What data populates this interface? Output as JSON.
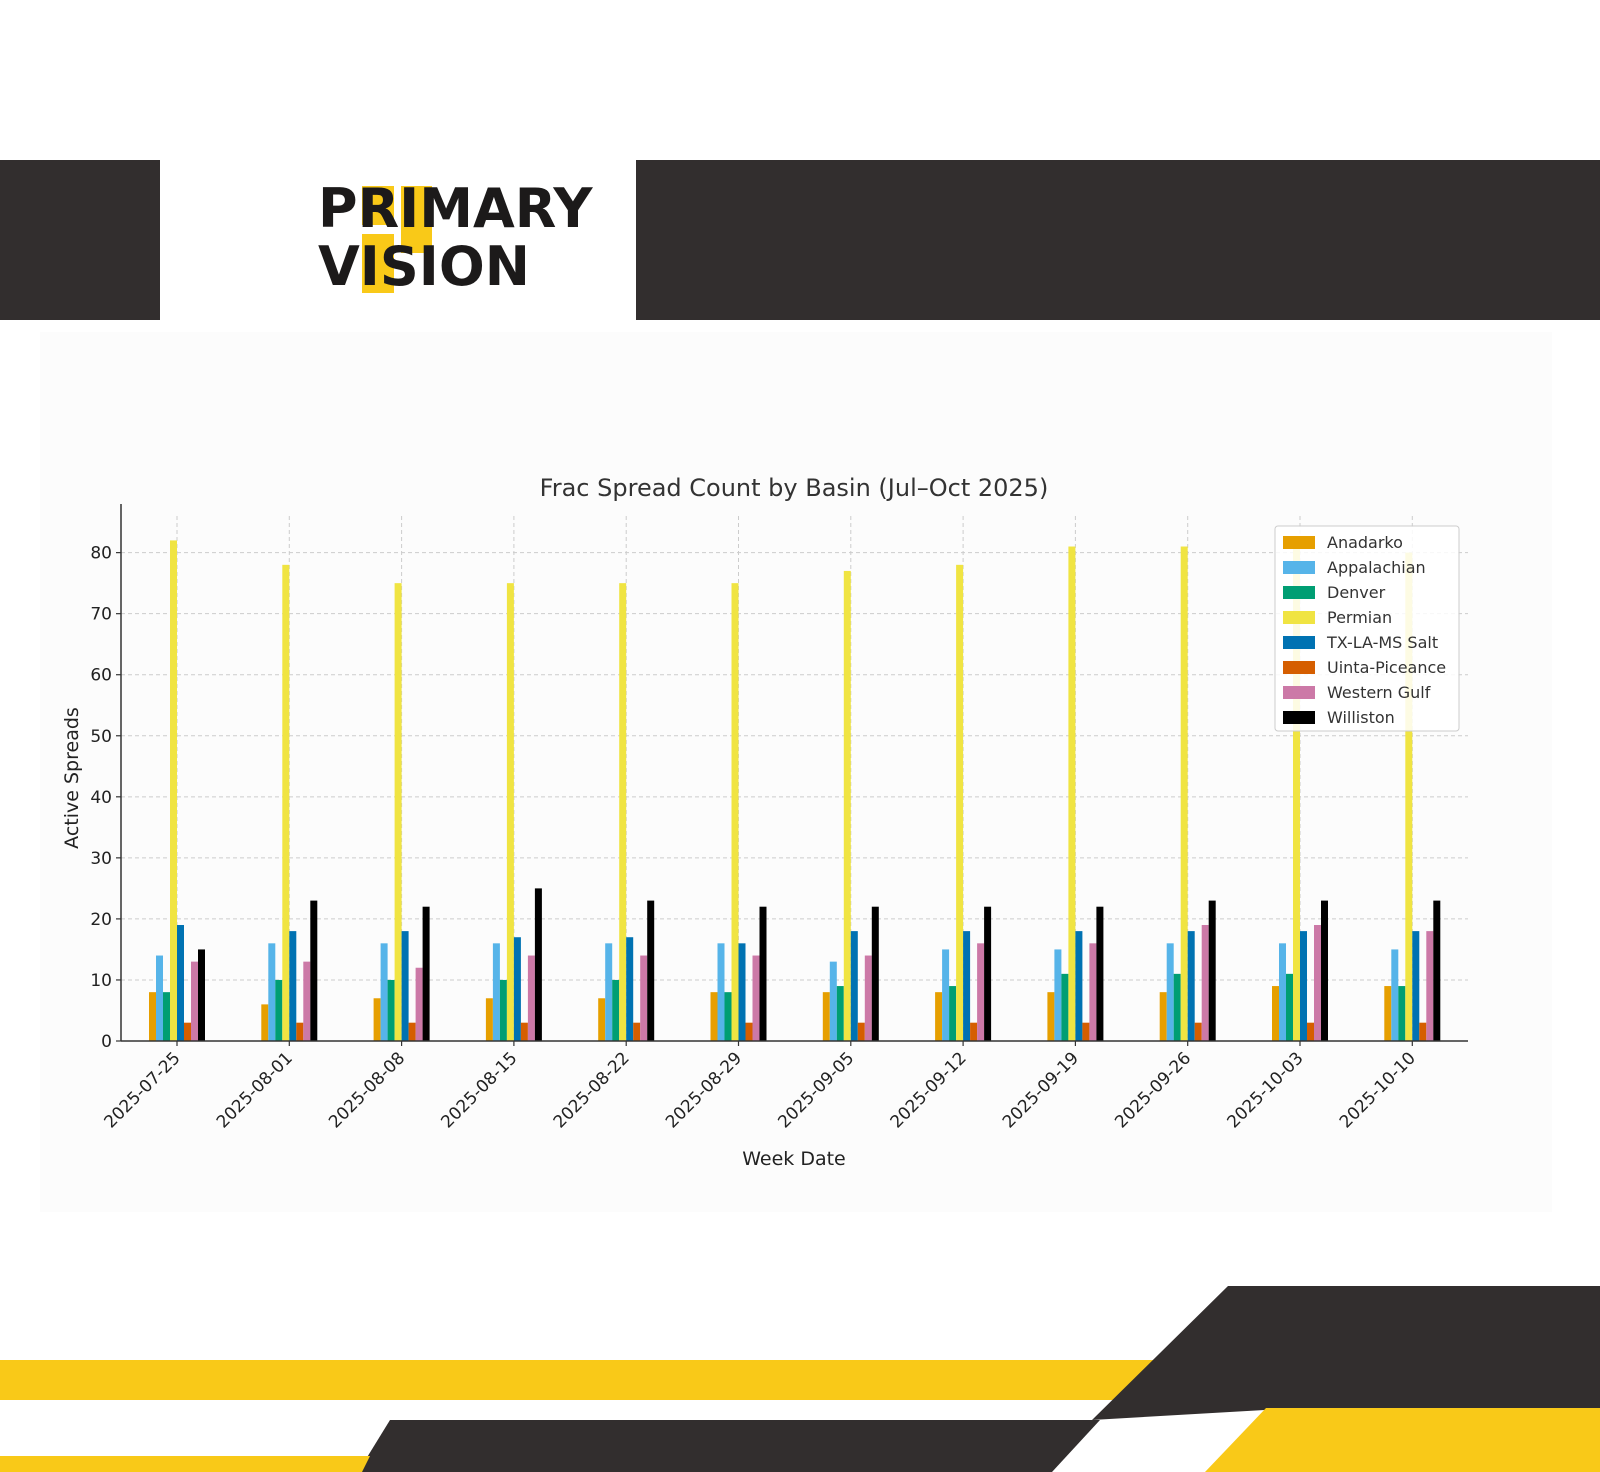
{
  "brand": {
    "name_line1": "PRIMARY",
    "name_line2": "VISION",
    "accent_color": "#f9c918",
    "dark_color": "#322e2e"
  },
  "chart_data": {
    "type": "bar",
    "title": "Frac Spread Count by Basin (Jul–Oct 2025)",
    "xlabel": "Week Date",
    "ylabel": "Active Spreads",
    "ylim": [
      0,
      86
    ],
    "yticks": [
      0,
      10,
      20,
      30,
      40,
      50,
      60,
      70,
      80
    ],
    "grid": true,
    "legend_position": "top-right",
    "categories": [
      "2025-07-25",
      "2025-08-01",
      "2025-08-08",
      "2025-08-15",
      "2025-08-22",
      "2025-08-29",
      "2025-09-05",
      "2025-09-12",
      "2025-09-19",
      "2025-09-26",
      "2025-10-03",
      "2025-10-10"
    ],
    "series": [
      {
        "name": "Anadarko",
        "color": "#e69f00",
        "values": [
          8,
          6,
          7,
          7,
          7,
          8,
          8,
          8,
          8,
          8,
          9,
          9
        ]
      },
      {
        "name": "Appalachian",
        "color": "#56b4e9",
        "values": [
          14,
          16,
          16,
          16,
          16,
          16,
          13,
          15,
          15,
          16,
          16,
          15
        ]
      },
      {
        "name": "Denver",
        "color": "#009e73",
        "values": [
          8,
          10,
          10,
          10,
          10,
          8,
          9,
          9,
          11,
          11,
          11,
          9
        ]
      },
      {
        "name": "Permian",
        "color": "#f0e442",
        "values": [
          82,
          78,
          75,
          75,
          75,
          75,
          77,
          78,
          81,
          81,
          81,
          80
        ]
      },
      {
        "name": "TX-LA-MS Salt",
        "color": "#0072b2",
        "values": [
          19,
          18,
          18,
          17,
          17,
          16,
          18,
          18,
          18,
          18,
          18,
          18
        ]
      },
      {
        "name": "Uinta-Piceance",
        "color": "#d55e00",
        "values": [
          3,
          3,
          3,
          3,
          3,
          3,
          3,
          3,
          3,
          3,
          3,
          3
        ]
      },
      {
        "name": "Western Gulf",
        "color": "#cc79a7",
        "values": [
          13,
          13,
          12,
          14,
          14,
          14,
          14,
          16,
          16,
          19,
          19,
          18
        ]
      },
      {
        "name": "Williston",
        "color": "#000000",
        "values": [
          15,
          23,
          22,
          25,
          23,
          22,
          22,
          22,
          22,
          23,
          23,
          23
        ]
      }
    ]
  }
}
